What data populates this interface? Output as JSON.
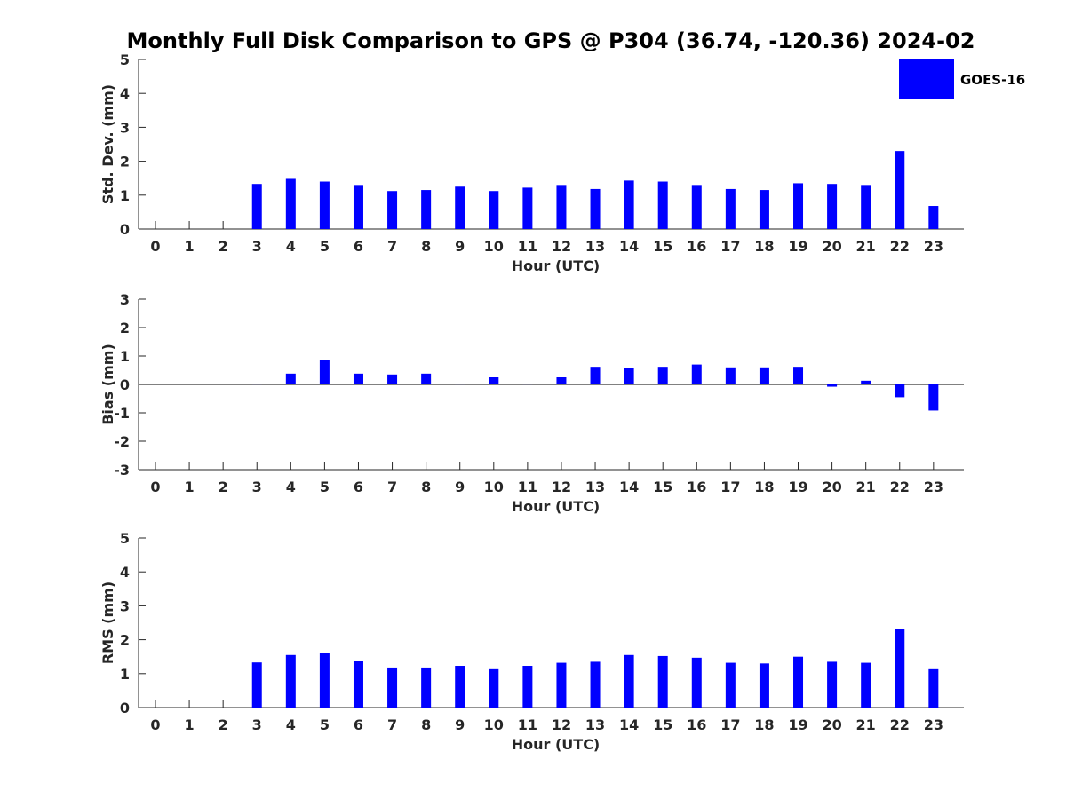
{
  "title": "Monthly Full Disk Comparison to GPS @ P304 (36.74, -120.36) 2024-02",
  "legend": {
    "label": "GOES-16",
    "color": "#0000ff"
  },
  "chart_data": [
    {
      "type": "bar",
      "id": "stddev",
      "title": "",
      "xlabel": "Hour (UTC)",
      "ylabel": "Std. Dev. (mm)",
      "categories": [
        "0",
        "1",
        "2",
        "3",
        "4",
        "5",
        "6",
        "7",
        "8",
        "9",
        "10",
        "11",
        "12",
        "13",
        "14",
        "15",
        "16",
        "17",
        "18",
        "19",
        "20",
        "21",
        "22",
        "23"
      ],
      "series": [
        {
          "name": "GOES-16",
          "color": "#0000ff",
          "values": [
            null,
            null,
            null,
            1.33,
            1.48,
            1.4,
            1.3,
            1.12,
            1.15,
            1.25,
            1.12,
            1.22,
            1.3,
            1.18,
            1.43,
            1.4,
            1.3,
            1.18,
            1.15,
            1.35,
            1.33,
            1.3,
            2.3,
            0.68
          ]
        }
      ],
      "ylim": [
        0,
        5
      ],
      "yticks": [
        0,
        1,
        2,
        3,
        4,
        5
      ],
      "legend_position": "top-right",
      "grid": false
    },
    {
      "type": "bar",
      "id": "bias",
      "title": "",
      "xlabel": "Hour (UTC)",
      "ylabel": "Bias (mm)",
      "categories": [
        "0",
        "1",
        "2",
        "3",
        "4",
        "5",
        "6",
        "7",
        "8",
        "9",
        "10",
        "11",
        "12",
        "13",
        "14",
        "15",
        "16",
        "17",
        "18",
        "19",
        "20",
        "21",
        "22",
        "23"
      ],
      "series": [
        {
          "name": "GOES-16",
          "color": "#0000ff",
          "values": [
            null,
            null,
            null,
            0.03,
            0.38,
            0.85,
            0.38,
            0.35,
            0.38,
            0.03,
            0.25,
            0.03,
            0.25,
            0.62,
            0.57,
            0.62,
            0.7,
            0.6,
            0.6,
            0.62,
            -0.08,
            0.13,
            -0.45,
            -0.92
          ]
        }
      ],
      "ylim": [
        -3,
        3
      ],
      "yticks": [
        -3,
        -2,
        -1,
        0,
        1,
        2,
        3
      ],
      "zero_line": true,
      "grid": false
    },
    {
      "type": "bar",
      "id": "rms",
      "title": "",
      "xlabel": "Hour (UTC)",
      "ylabel": "RMS (mm)",
      "categories": [
        "0",
        "1",
        "2",
        "3",
        "4",
        "5",
        "6",
        "7",
        "8",
        "9",
        "10",
        "11",
        "12",
        "13",
        "14",
        "15",
        "16",
        "17",
        "18",
        "19",
        "20",
        "21",
        "22",
        "23"
      ],
      "series": [
        {
          "name": "GOES-16",
          "color": "#0000ff",
          "values": [
            null,
            null,
            null,
            1.33,
            1.55,
            1.62,
            1.37,
            1.18,
            1.18,
            1.23,
            1.13,
            1.23,
            1.32,
            1.35,
            1.55,
            1.52,
            1.47,
            1.32,
            1.3,
            1.5,
            1.35,
            1.32,
            2.33,
            1.13
          ]
        }
      ],
      "ylim": [
        0,
        5
      ],
      "yticks": [
        0,
        1,
        2,
        3,
        4,
        5
      ],
      "grid": false
    }
  ]
}
